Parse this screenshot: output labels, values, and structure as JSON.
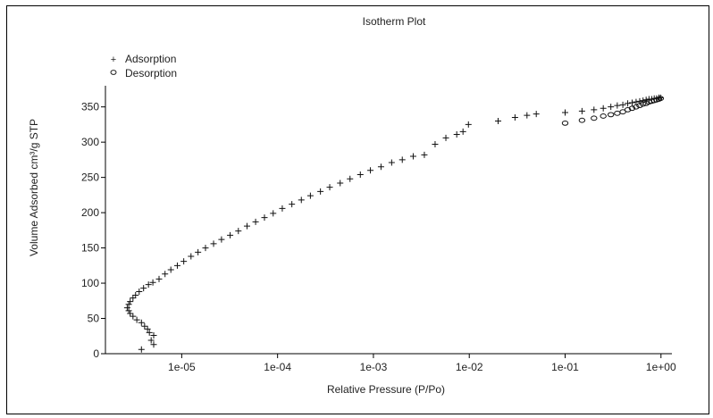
{
  "chart_data": {
    "type": "scatter",
    "title": "Isotherm Plot",
    "xlabel": "Relative Pressure (P/Po)",
    "ylabel": "Volume Adsorbed cm³/g STP",
    "xscale": "log",
    "xlim": [
      1.6e-06,
      1.3
    ],
    "ylim": [
      0,
      380
    ],
    "xticks": [
      1e-05,
      0.0001,
      0.001,
      0.01,
      0.1,
      1
    ],
    "xtick_labels": [
      "1e-05",
      "1e-04",
      "1e-03",
      "1e-02",
      "1e-01",
      "1e+00"
    ],
    "yticks": [
      0,
      50,
      100,
      150,
      200,
      250,
      300,
      350
    ],
    "ytick_labels": [
      "0",
      "50",
      "100",
      "150",
      "200",
      "250",
      "300",
      "350"
    ],
    "grid": false,
    "legend": "top-left",
    "series": [
      {
        "name": "Adsorption",
        "marker": "+",
        "x": [
          3.8e-06,
          5.1e-06,
          4.8e-06,
          5.1e-06,
          4.6e-06,
          4.4e-06,
          4.1e-06,
          3.8e-06,
          3.4e-06,
          3.1e-06,
          2.9e-06,
          2.8e-06,
          2.7e-06,
          2.8e-06,
          2.9e-06,
          3.1e-06,
          3.3e-06,
          3.6e-06,
          4e-06,
          4.5e-06,
          5e-06,
          5.8e-06,
          6.7e-06,
          7.7e-06,
          9e-06,
          1.05e-05,
          1.25e-05,
          1.48e-05,
          1.77e-05,
          2.15e-05,
          2.6e-05,
          3.2e-05,
          3.9e-05,
          4.8e-05,
          5.9e-05,
          7.3e-05,
          9e-05,
          0.000112,
          0.000141,
          0.000177,
          0.00022,
          0.00028,
          0.00035,
          0.00045,
          0.00057,
          0.00073,
          0.00093,
          0.0012,
          0.00155,
          0.002,
          0.0026,
          0.0034,
          0.0044,
          0.0057,
          0.0074,
          0.0086,
          0.0098,
          0.02,
          0.03,
          0.04,
          0.05,
          0.1,
          0.15,
          0.2,
          0.25,
          0.3,
          0.35,
          0.4,
          0.45,
          0.5,
          0.55,
          0.6,
          0.65,
          0.7,
          0.75,
          0.8,
          0.85,
          0.9,
          0.95,
          0.99
        ],
        "y": [
          6,
          13,
          19,
          26,
          30,
          35,
          39,
          44,
          48,
          53,
          57,
          61,
          65,
          70,
          74,
          79,
          83,
          88,
          93,
          98,
          101,
          106,
          113,
          119,
          125,
          131,
          138,
          144,
          150,
          156,
          162,
          168,
          174,
          181,
          187,
          193,
          199,
          206,
          212,
          218,
          224,
          230,
          236,
          242,
          248,
          254,
          260,
          265,
          271,
          275,
          280,
          282,
          297,
          306,
          311,
          315,
          325,
          330,
          335,
          338,
          340,
          342,
          344,
          346,
          348,
          350,
          352,
          353,
          355,
          356,
          357,
          358,
          359,
          360,
          361,
          361,
          362,
          362,
          363,
          363
        ],
        "x_note": "log-scale x values"
      },
      {
        "name": "Desorption",
        "marker": "o",
        "x": [
          0.1,
          0.15,
          0.2,
          0.25,
          0.3,
          0.35,
          0.4,
          0.45,
          0.5,
          0.55,
          0.6,
          0.65,
          0.7,
          0.75,
          0.8,
          0.85,
          0.9,
          0.95,
          0.99
        ],
        "y": [
          327,
          331,
          334,
          337,
          339,
          341,
          343,
          346,
          348,
          350,
          352,
          354,
          355,
          357,
          358,
          359,
          360,
          361,
          362
        ]
      }
    ]
  }
}
